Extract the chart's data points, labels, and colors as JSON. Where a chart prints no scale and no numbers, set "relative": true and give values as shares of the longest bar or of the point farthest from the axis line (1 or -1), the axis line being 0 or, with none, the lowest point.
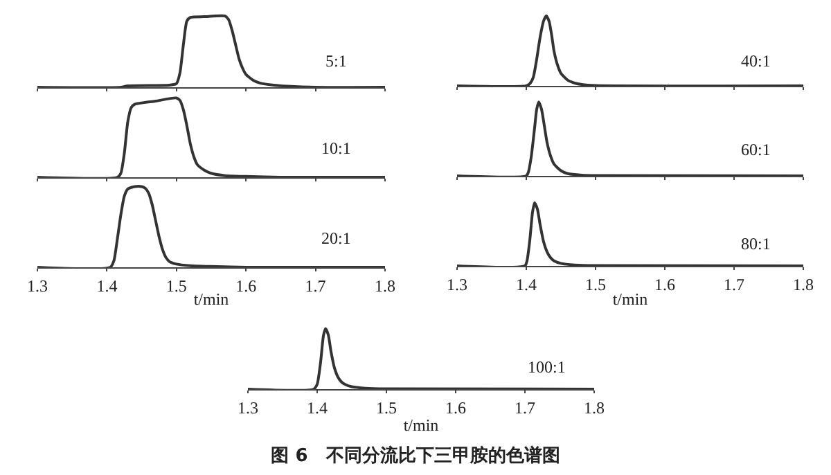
{
  "chart_data": [
    {
      "type": "line",
      "relative": true,
      "annotations": [
        "5:1"
      ],
      "xlim": [
        1.3,
        1.8
      ],
      "xticks": [
        1.3,
        1.4,
        1.5,
        1.6,
        1.7,
        1.8
      ],
      "tick_labels": false,
      "series": [
        {
          "color": "#333333",
          "x": [
            1.3,
            1.42,
            1.43,
            1.49,
            1.5,
            1.505,
            1.51,
            1.515,
            1.52,
            1.54,
            1.57,
            1.575,
            1.58,
            1.585,
            1.59,
            1.595,
            1.6,
            1.61,
            1.62,
            1.64,
            1.66,
            1.7,
            1.8
          ],
          "values": [
            0,
            0,
            0.02,
            0.03,
            0.05,
            0.2,
            0.6,
            0.93,
            0.98,
            0.99,
            1.0,
            0.95,
            0.8,
            0.6,
            0.4,
            0.27,
            0.18,
            0.1,
            0.06,
            0.03,
            0.015,
            0,
            0
          ]
        }
      ]
    },
    {
      "type": "line",
      "relative": true,
      "annotations": [
        "10:1"
      ],
      "xlim": [
        1.3,
        1.8
      ],
      "xticks": [
        1.3,
        1.4,
        1.5,
        1.6,
        1.7,
        1.8
      ],
      "tick_labels": false,
      "series": [
        {
          "color": "#333333",
          "x": [
            1.3,
            1.415,
            1.42,
            1.425,
            1.43,
            1.435,
            1.44,
            1.47,
            1.5,
            1.505,
            1.51,
            1.515,
            1.52,
            1.525,
            1.53,
            1.54,
            1.55,
            1.57,
            1.6,
            1.65,
            1.8
          ],
          "values": [
            0,
            0,
            0.05,
            0.3,
            0.7,
            0.88,
            0.92,
            0.96,
            1.0,
            0.97,
            0.85,
            0.65,
            0.42,
            0.26,
            0.16,
            0.09,
            0.05,
            0.02,
            0.01,
            0,
            0
          ]
        }
      ]
    },
    {
      "type": "line",
      "relative": true,
      "annotations": [
        "20:1"
      ],
      "xlabel": "t/min",
      "xlim": [
        1.3,
        1.8
      ],
      "xticks": [
        1.3,
        1.4,
        1.5,
        1.6,
        1.7,
        1.8
      ],
      "tick_labels": "x",
      "series": [
        {
          "color": "#333333",
          "x": [
            1.3,
            1.405,
            1.41,
            1.415,
            1.42,
            1.425,
            1.43,
            1.44,
            1.45,
            1.455,
            1.46,
            1.465,
            1.47,
            1.475,
            1.48,
            1.485,
            1.49,
            1.5,
            1.52,
            1.55,
            1.6,
            1.8
          ],
          "values": [
            0,
            0,
            0.08,
            0.35,
            0.65,
            0.88,
            0.97,
            1.0,
            1.0,
            0.98,
            0.92,
            0.78,
            0.58,
            0.38,
            0.22,
            0.12,
            0.07,
            0.04,
            0.02,
            0.01,
            0,
            0
          ]
        }
      ]
    },
    {
      "type": "line",
      "relative": true,
      "annotations": [
        "40:1"
      ],
      "xlim": [
        1.3,
        1.8
      ],
      "xticks": [
        1.3,
        1.4,
        1.5,
        1.6,
        1.7,
        1.8
      ],
      "tick_labels": false,
      "series": [
        {
          "color": "#333333",
          "x": [
            1.3,
            1.4,
            1.405,
            1.41,
            1.415,
            1.42,
            1.425,
            1.429,
            1.433,
            1.437,
            1.44,
            1.445,
            1.45,
            1.46,
            1.47,
            1.48,
            1.5,
            1.8
          ],
          "values": [
            0,
            0,
            0.03,
            0.12,
            0.38,
            0.7,
            0.93,
            1.0,
            0.92,
            0.7,
            0.5,
            0.3,
            0.18,
            0.08,
            0.04,
            0.02,
            0.005,
            0
          ]
        }
      ]
    },
    {
      "type": "line",
      "relative": true,
      "annotations": [
        "60:1"
      ],
      "xlim": [
        1.3,
        1.8
      ],
      "xticks": [
        1.3,
        1.4,
        1.5,
        1.6,
        1.7,
        1.8
      ],
      "tick_labels": false,
      "series": [
        {
          "color": "#333333",
          "x": [
            1.3,
            1.4,
            1.403,
            1.407,
            1.412,
            1.415,
            1.418,
            1.422,
            1.426,
            1.43,
            1.435,
            1.44,
            1.45,
            1.46,
            1.48,
            1.5,
            1.8
          ],
          "values": [
            0,
            0,
            0.05,
            0.25,
            0.65,
            0.9,
            1.0,
            0.9,
            0.68,
            0.45,
            0.27,
            0.16,
            0.07,
            0.03,
            0.01,
            0.005,
            0
          ]
        }
      ]
    },
    {
      "type": "line",
      "relative": true,
      "annotations": [
        "80:1"
      ],
      "xlabel": "t/min",
      "xlim": [
        1.3,
        1.8
      ],
      "xticks": [
        1.3,
        1.4,
        1.5,
        1.6,
        1.7,
        1.8
      ],
      "tick_labels": "x",
      "series": [
        {
          "color": "#333333",
          "x": [
            1.3,
            1.398,
            1.401,
            1.405,
            1.409,
            1.412,
            1.416,
            1.42,
            1.425,
            1.43,
            1.435,
            1.44,
            1.45,
            1.47,
            1.5,
            1.8
          ],
          "values": [
            0,
            0,
            0.08,
            0.4,
            0.85,
            1.0,
            0.9,
            0.65,
            0.38,
            0.22,
            0.13,
            0.08,
            0.04,
            0.015,
            0.005,
            0
          ]
        }
      ]
    },
    {
      "type": "line",
      "relative": true,
      "title": "图 6　不同分流比下三甲胺的色谱图",
      "annotations": [
        "100:1"
      ],
      "xlabel": "t/min",
      "xlim": [
        1.3,
        1.8
      ],
      "xticks": [
        1.3,
        1.4,
        1.5,
        1.6,
        1.7,
        1.8
      ],
      "tick_labels": "x",
      "series": [
        {
          "color": "#333333",
          "x": [
            1.3,
            1.395,
            1.4,
            1.405,
            1.409,
            1.412,
            1.416,
            1.42,
            1.425,
            1.43,
            1.435,
            1.44,
            1.45,
            1.47,
            1.5,
            1.8
          ],
          "values": [
            0,
            0,
            0.08,
            0.45,
            0.88,
            1.0,
            0.9,
            0.62,
            0.35,
            0.2,
            0.12,
            0.08,
            0.04,
            0.015,
            0.005,
            0
          ]
        }
      ]
    }
  ]
}
